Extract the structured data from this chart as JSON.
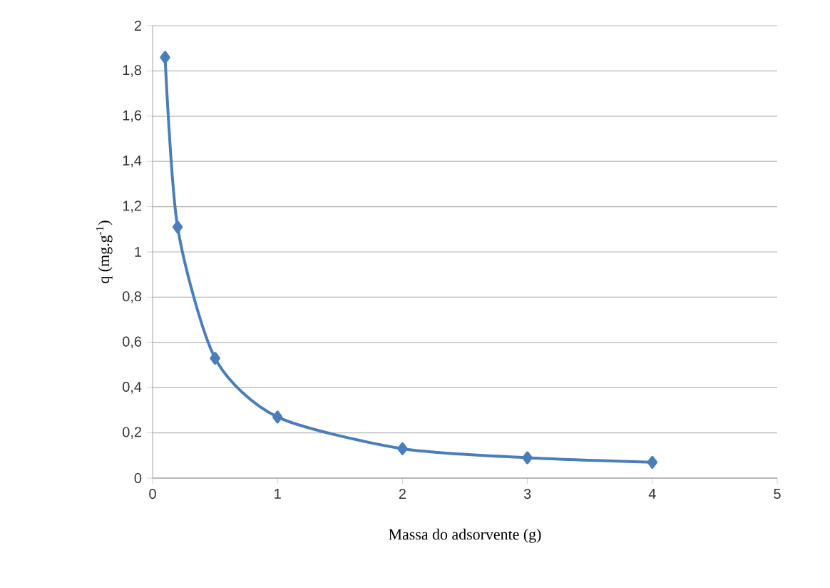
{
  "chart_data": {
    "type": "line",
    "xlabel": "Massa do adsorvente (g)",
    "ylabel": "q (mg.g$^{-1}$)",
    "x": [
      0.1,
      0.2,
      0.5,
      1,
      2,
      3,
      4
    ],
    "series": [
      {
        "color": "#4a7ebb",
        "values": [
          1.86,
          1.11,
          0.53,
          0.27,
          0.13,
          0.09,
          0.07
        ]
      }
    ],
    "xlim": [
      0,
      5
    ],
    "xticks": [
      0,
      1,
      2,
      3,
      4,
      5
    ],
    "ylim": [
      0,
      2
    ],
    "yticks": [
      0,
      {
        "value": 0.2,
        "label": "0,2"
      },
      {
        "value": 0.4,
        "label": "0,4"
      },
      {
        "value": 0.6,
        "label": "0,6"
      },
      {
        "value": 0.8,
        "label": "0,8"
      },
      1,
      {
        "value": 1.2,
        "label": "1,2"
      },
      {
        "value": 1.4,
        "label": "1,4"
      },
      {
        "value": 1.6,
        "label": "1,6"
      },
      {
        "value": 1.8,
        "label": "1,8"
      },
      2
    ],
    "grid": "y",
    "marker": "diamond",
    "line_style": "solid"
  }
}
